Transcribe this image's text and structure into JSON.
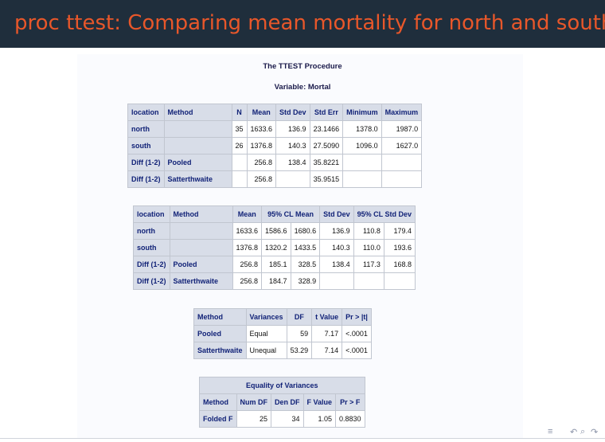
{
  "slide": {
    "title": "proc ttest: Comparing mean mortality for north and south"
  },
  "procedure": {
    "title": "The TTEST Procedure",
    "variable": "Variable: Mortal"
  },
  "table1": {
    "headers": [
      "location",
      "Method",
      "N",
      "Mean",
      "Std Dev",
      "Std Err",
      "Minimum",
      "Maximum"
    ],
    "rows": [
      [
        "north",
        "",
        "35",
        "1633.6",
        "136.9",
        "23.1466",
        "1378.0",
        "1987.0"
      ],
      [
        "south",
        "",
        "26",
        "1376.8",
        "140.3",
        "27.5090",
        "1096.0",
        "1627.0"
      ],
      [
        "Diff (1-2)",
        "Pooled",
        "",
        "256.8",
        "138.4",
        "35.8221",
        "",
        ""
      ],
      [
        "Diff (1-2)",
        "Satterthwaite",
        "",
        "256.8",
        "",
        "35.9515",
        "",
        ""
      ]
    ]
  },
  "table2": {
    "headers": [
      "location",
      "Method",
      "Mean",
      "95% CL Mean",
      "Std Dev",
      "95% CL Std Dev"
    ],
    "rows": [
      [
        "north",
        "",
        "1633.6",
        "1586.6",
        "1680.6",
        "136.9",
        "110.8",
        "179.4"
      ],
      [
        "south",
        "",
        "1376.8",
        "1320.2",
        "1433.5",
        "140.3",
        "110.0",
        "193.6"
      ],
      [
        "Diff (1-2)",
        "Pooled",
        "256.8",
        "185.1",
        "328.5",
        "138.4",
        "117.3",
        "168.8"
      ],
      [
        "Diff (1-2)",
        "Satterthwaite",
        "256.8",
        "184.7",
        "328.9",
        "",
        "",
        ""
      ]
    ]
  },
  "table3": {
    "headers": [
      "Method",
      "Variances",
      "DF",
      "t Value",
      "Pr > |t|"
    ],
    "rows": [
      [
        "Pooled",
        "Equal",
        "59",
        "7.17",
        "<.0001"
      ],
      [
        "Satterthwaite",
        "Unequal",
        "53.29",
        "7.14",
        "<.0001"
      ]
    ]
  },
  "table4": {
    "caption": "Equality of Variances",
    "headers": [
      "Method",
      "Num DF",
      "Den DF",
      "F Value",
      "Pr > F"
    ],
    "rows": [
      [
        "Folded F",
        "25",
        "34",
        "1.05",
        "0.8830"
      ]
    ]
  },
  "nav": {
    "menu_icon": "≡",
    "prev_icon": "↶",
    "search_icon": "⌕",
    "next_icon": "↷"
  }
}
